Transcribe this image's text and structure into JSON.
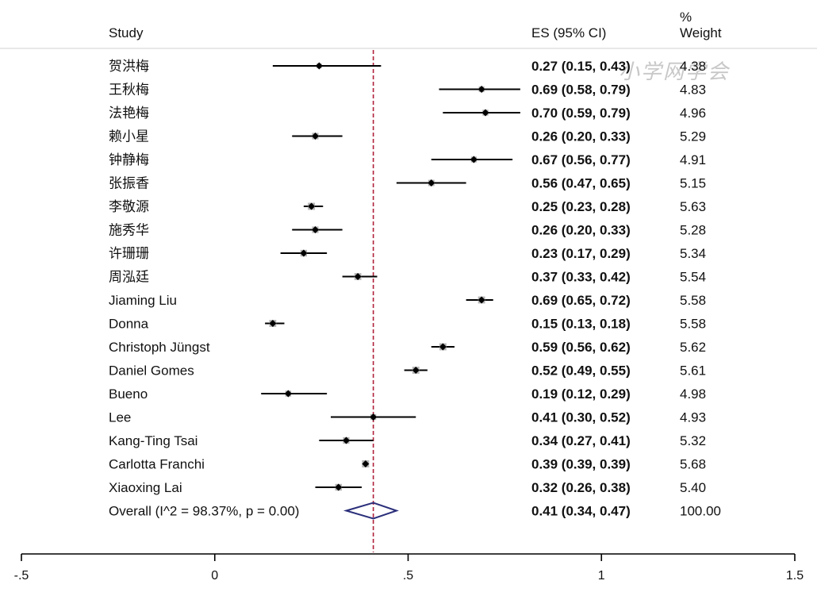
{
  "header": {
    "study": "Study",
    "es": "ES (95% CI)",
    "weight_line1": "%",
    "weight_line2": "Weight"
  },
  "watermark": "小学网学会",
  "chart_data": {
    "type": "forest",
    "ref_line": 0.41,
    "xlim": [
      -0.5,
      1.5
    ],
    "ticks": [
      -0.5,
      0,
      0.5,
      1,
      1.5
    ],
    "tick_labels": [
      "-.5",
      "0",
      ".5",
      "1",
      "1.5"
    ],
    "colors": {
      "ci_line": "#000000",
      "box": "#b5b5b5",
      "ref_line": "#b0203a",
      "diamond": "#2b2f7a"
    },
    "studies": [
      {
        "name": "贺洪梅",
        "es": 0.27,
        "lo": 0.15,
        "hi": 0.43,
        "label": "0.27 (0.15, 0.43)",
        "weight": "4.38"
      },
      {
        "name": "王秋梅",
        "es": 0.69,
        "lo": 0.58,
        "hi": 0.79,
        "label": "0.69 (0.58, 0.79)",
        "weight": "4.83"
      },
      {
        "name": "法艳梅",
        "es": 0.7,
        "lo": 0.59,
        "hi": 0.79,
        "label": "0.70 (0.59, 0.79)",
        "weight": "4.96"
      },
      {
        "name": "赖小星",
        "es": 0.26,
        "lo": 0.2,
        "hi": 0.33,
        "label": "0.26 (0.20, 0.33)",
        "weight": "5.29"
      },
      {
        "name": "钟静梅",
        "es": 0.67,
        "lo": 0.56,
        "hi": 0.77,
        "label": "0.67 (0.56, 0.77)",
        "weight": "4.91"
      },
      {
        "name": "张振香",
        "es": 0.56,
        "lo": 0.47,
        "hi": 0.65,
        "label": "0.56 (0.47, 0.65)",
        "weight": "5.15"
      },
      {
        "name": "李敬源",
        "es": 0.25,
        "lo": 0.23,
        "hi": 0.28,
        "label": "0.25 (0.23, 0.28)",
        "weight": "5.63"
      },
      {
        "name": "施秀华",
        "es": 0.26,
        "lo": 0.2,
        "hi": 0.33,
        "label": "0.26 (0.20, 0.33)",
        "weight": "5.28"
      },
      {
        "name": "许珊珊",
        "es": 0.23,
        "lo": 0.17,
        "hi": 0.29,
        "label": "0.23 (0.17, 0.29)",
        "weight": "5.34"
      },
      {
        "name": "周泓廷",
        "es": 0.37,
        "lo": 0.33,
        "hi": 0.42,
        "label": "0.37 (0.33, 0.42)",
        "weight": "5.54"
      },
      {
        "name": "Jiaming Liu",
        "es": 0.69,
        "lo": 0.65,
        "hi": 0.72,
        "label": "0.69 (0.65, 0.72)",
        "weight": "5.58"
      },
      {
        "name": "Donna",
        "es": 0.15,
        "lo": 0.13,
        "hi": 0.18,
        "label": "0.15 (0.13, 0.18)",
        "weight": "5.58"
      },
      {
        "name": "Christoph Jüngst",
        "es": 0.59,
        "lo": 0.56,
        "hi": 0.62,
        "label": "0.59 (0.56, 0.62)",
        "weight": "5.62"
      },
      {
        "name": "Daniel Gomes",
        "es": 0.52,
        "lo": 0.49,
        "hi": 0.55,
        "label": "0.52 (0.49, 0.55)",
        "weight": "5.61"
      },
      {
        "name": "Bueno",
        "es": 0.19,
        "lo": 0.12,
        "hi": 0.29,
        "label": "0.19 (0.12, 0.29)",
        "weight": "4.98"
      },
      {
        "name": "Lee",
        "es": 0.41,
        "lo": 0.3,
        "hi": 0.52,
        "label": "0.41 (0.30, 0.52)",
        "weight": "4.93"
      },
      {
        "name": "Kang-Ting Tsai",
        "es": 0.34,
        "lo": 0.27,
        "hi": 0.41,
        "label": "0.34 (0.27, 0.41)",
        "weight": "5.32"
      },
      {
        "name": "Carlotta Franchi",
        "es": 0.39,
        "lo": 0.39,
        "hi": 0.39,
        "label": "0.39 (0.39, 0.39)",
        "weight": "5.68"
      },
      {
        "name": "Xiaoxing Lai",
        "es": 0.32,
        "lo": 0.26,
        "hi": 0.38,
        "label": "0.32 (0.26, 0.38)",
        "weight": "5.40"
      }
    ],
    "overall": {
      "name": "Overall  (I^2 = 98.37%, p = 0.00)",
      "es": 0.41,
      "lo": 0.34,
      "hi": 0.47,
      "label": "0.41 (0.34, 0.47)",
      "weight": "100.00"
    }
  }
}
